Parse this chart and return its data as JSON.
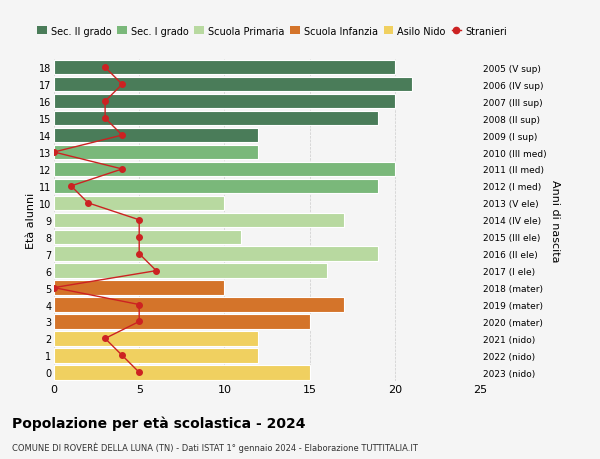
{
  "ages": [
    18,
    17,
    16,
    15,
    14,
    13,
    12,
    11,
    10,
    9,
    8,
    7,
    6,
    5,
    4,
    3,
    2,
    1,
    0
  ],
  "anni_nascita": [
    "2005 (V sup)",
    "2006 (IV sup)",
    "2007 (III sup)",
    "2008 (II sup)",
    "2009 (I sup)",
    "2010 (III med)",
    "2011 (II med)",
    "2012 (I med)",
    "2013 (V ele)",
    "2014 (IV ele)",
    "2015 (III ele)",
    "2016 (II ele)",
    "2017 (I ele)",
    "2018 (mater)",
    "2019 (mater)",
    "2020 (mater)",
    "2021 (nido)",
    "2022 (nido)",
    "2023 (nido)"
  ],
  "bar_values": [
    20,
    21,
    20,
    19,
    12,
    12,
    20,
    19,
    10,
    17,
    11,
    19,
    16,
    10,
    17,
    15,
    12,
    12,
    15
  ],
  "bar_colors": [
    "#4a7c59",
    "#4a7c59",
    "#4a7c59",
    "#4a7c59",
    "#4a7c59",
    "#7ab87a",
    "#7ab87a",
    "#7ab87a",
    "#b8d9a0",
    "#b8d9a0",
    "#b8d9a0",
    "#b8d9a0",
    "#b8d9a0",
    "#d4742a",
    "#d4742a",
    "#d4742a",
    "#f0d060",
    "#f0d060",
    "#f0d060"
  ],
  "stranieri_values": [
    3,
    4,
    3,
    3,
    4,
    0,
    4,
    1,
    2,
    5,
    5,
    5,
    6,
    0,
    5,
    5,
    3,
    4,
    5
  ],
  "legend_labels": [
    "Sec. II grado",
    "Sec. I grado",
    "Scuola Primaria",
    "Scuola Infanzia",
    "Asilo Nido",
    "Stranieri"
  ],
  "legend_colors": [
    "#4a7c59",
    "#7ab87a",
    "#b8d9a0",
    "#d4742a",
    "#f0d060",
    "#cc2222"
  ],
  "title": "Popolazione per età scolastica - 2024",
  "subtitle": "COMUNE DI ROVERÈ DELLA LUNA (TN) - Dati ISTAT 1° gennaio 2024 - Elaborazione TUTTITALIA.IT",
  "ylabel": "Età alunni",
  "ylabel2": "Anni di nascita",
  "xlim": [
    0,
    25
  ],
  "background_color": "#f5f5f5",
  "grid_color": "#cccccc"
}
